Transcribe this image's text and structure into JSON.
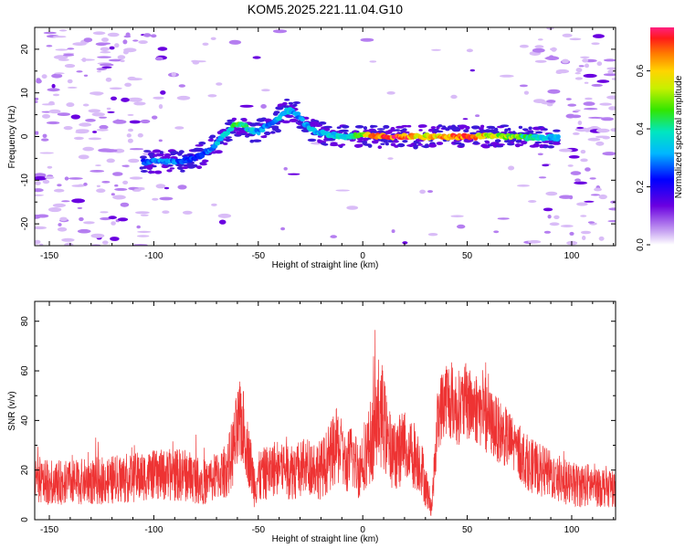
{
  "title": "KOM5.2025.221.11.04.G10",
  "chart_data": [
    {
      "type": "heatmap",
      "title": "KOM5.2025.221.11.04.G10",
      "xlabel": "Height of straight line (km)",
      "ylabel": "Frequency (Hz)",
      "xlim": [
        -157,
        121
      ],
      "ylim": [
        -25,
        25
      ],
      "xticks": [
        -150,
        -100,
        -50,
        0,
        50,
        100
      ],
      "xtick_labels": [
        "-150",
        "-100",
        "-50",
        "0",
        "50",
        "100"
      ],
      "yticks": [
        -20,
        -10,
        0,
        10,
        20
      ],
      "ytick_labels": [
        "-20",
        "-10",
        "0",
        "10",
        "20"
      ],
      "ridge": {
        "x": [
          -105,
          -95,
          -85,
          -78,
          -72,
          -66,
          -62,
          -58,
          -54,
          -50,
          -46,
          -42,
          -38,
          -35,
          -32,
          -28,
          -24,
          -20,
          -15,
          -10,
          -5,
          0,
          10,
          20,
          30,
          40,
          50,
          60,
          70,
          80,
          88,
          94
        ],
        "frequency": [
          -5.8,
          -5.8,
          -5.5,
          -4.5,
          -2.5,
          0.5,
          2.5,
          3,
          1.5,
          1,
          2.5,
          3.5,
          5.5,
          6,
          5.5,
          3,
          1.5,
          0.8,
          0.5,
          0,
          0.2,
          0.3,
          0,
          0,
          0,
          0,
          0,
          0,
          0,
          -0.3,
          -0.3,
          -0.3
        ],
        "amplitude": [
          0.25,
          0.3,
          0.25,
          0.25,
          0.3,
          0.35,
          0.4,
          0.45,
          0.35,
          0.3,
          0.3,
          0.3,
          0.35,
          0.35,
          0.3,
          0.3,
          0.35,
          0.3,
          0.35,
          0.35,
          0.4,
          0.5,
          0.72,
          0.68,
          0.55,
          0.62,
          0.7,
          0.55,
          0.5,
          0.4,
          0.35,
          0.3
        ]
      },
      "background_amplitude": 0.05,
      "noise_free_x_range": [
        -85,
        75
      ],
      "colorbar": {
        "label": "Normalized spectral amplitude",
        "range": [
          0,
          0.75
        ],
        "ticks": [
          0.0,
          0.2,
          0.4,
          0.6
        ],
        "tick_labels": [
          "0.0",
          "0.2",
          "0.4",
          "0.6"
        ]
      }
    },
    {
      "type": "line",
      "xlabel": "Height of straight line (km)",
      "ylabel": "SNR (v/v)",
      "xlim": [
        -157,
        121
      ],
      "ylim": [
        0,
        88
      ],
      "xticks": [
        -150,
        -100,
        -50,
        0,
        50,
        100
      ],
      "xtick_labels": [
        "-150",
        "-100",
        "-50",
        "0",
        "50",
        "100"
      ],
      "yticks": [
        0,
        20,
        40,
        60,
        80
      ],
      "ytick_labels": [
        "0",
        "20",
        "40",
        "60",
        "80"
      ],
      "series": [
        {
          "name": "SNR",
          "color": "#ee3333",
          "envelope_x": [
            -157,
            -140,
            -120,
            -100,
            -85,
            -75,
            -65,
            -62,
            -60,
            -58,
            -56,
            -52,
            -48,
            -44,
            -40,
            -35,
            -30,
            -25,
            -20,
            -15,
            -12,
            -8,
            -5,
            -2,
            0,
            3,
            6,
            8,
            10,
            12,
            15,
            20,
            25,
            28,
            30,
            33,
            36,
            40,
            45,
            50,
            55,
            60,
            70,
            80,
            90,
            100,
            110,
            121
          ],
          "envelope_mean": [
            15,
            15,
            16,
            18,
            18,
            15,
            20,
            28,
            35,
            40,
            32,
            15,
            18,
            20,
            22,
            20,
            20,
            22,
            20,
            26,
            30,
            22,
            26,
            20,
            25,
            30,
            36,
            45,
            40,
            30,
            26,
            30,
            26,
            22,
            14,
            5,
            42,
            50,
            45,
            47,
            45,
            40,
            32,
            22,
            18,
            14,
            14,
            13
          ],
          "envelope_spread": [
            9,
            9,
            10,
            10,
            11,
            9,
            11,
            15,
            18,
            18,
            14,
            10,
            11,
            11,
            12,
            12,
            12,
            12,
            12,
            14,
            16,
            12,
            14,
            12,
            14,
            16,
            20,
            24,
            20,
            16,
            14,
            16,
            14,
            12,
            9,
            4,
            14,
            16,
            15,
            16,
            15,
            14,
            12,
            11,
            10,
            9,
            9,
            8
          ]
        }
      ]
    }
  ]
}
